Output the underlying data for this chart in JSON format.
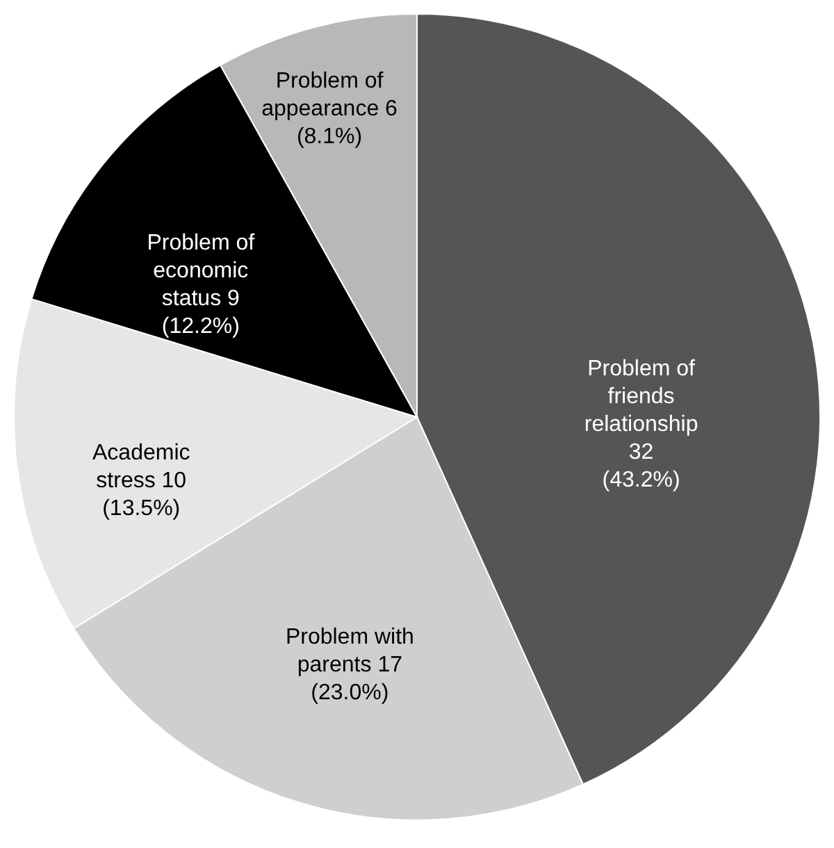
{
  "chart_data": {
    "type": "pie",
    "categories": [
      "Problem of friends relationship",
      "Problem with parents",
      "Academic stress",
      "Problem of economic status",
      "Problem of appearance"
    ],
    "values": [
      32,
      17,
      10,
      9,
      6
    ],
    "value_labels": [
      "32 (43.2%)",
      "17 (23.0%)",
      "10 (13.5%)",
      "9 (12.2%)",
      "6 (8.1%)"
    ],
    "colors": [
      "#555555",
      "#cfcfcf",
      "#e6e6e6",
      "#000000",
      "#b8b8b8"
    ]
  }
}
